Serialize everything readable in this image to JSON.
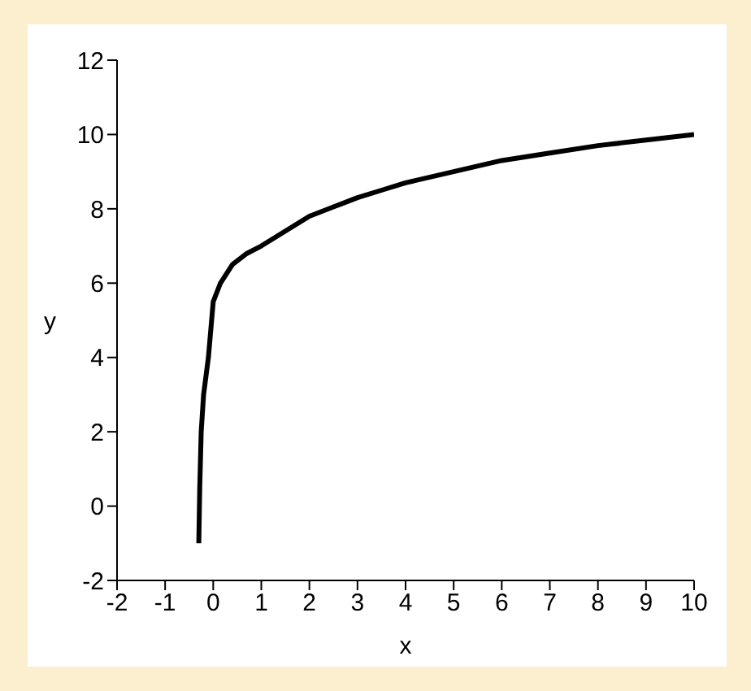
{
  "chart_data": {
    "type": "line",
    "xlabel": "x",
    "ylabel": "y",
    "x": [
      -0.3,
      -0.28,
      -0.25,
      -0.2,
      -0.1,
      0,
      0.15,
      0.4,
      0.7,
      1,
      1.5,
      2,
      2.5,
      3,
      3.5,
      4,
      5,
      6,
      7,
      8,
      9,
      10
    ],
    "series": [
      {
        "color": "#000000",
        "values": [
          -1,
          0.5,
          2,
          3,
          4,
          5.5,
          6,
          6.5,
          6.8,
          7,
          7.4,
          7.8,
          8.05,
          8.3,
          8.5,
          8.7,
          9,
          9.3,
          9.5,
          9.7,
          9.85,
          10
        ]
      }
    ],
    "xlim": [
      -2,
      10
    ],
    "xticks": [
      -2,
      -1,
      0,
      1,
      2,
      3,
      4,
      5,
      6,
      7,
      8,
      9,
      10
    ],
    "ylim": [
      -2,
      12
    ],
    "yticks": [
      -2,
      0,
      2,
      4,
      6,
      8,
      10,
      12
    ],
    "grid": false,
    "legend": false,
    "marker": "none",
    "line_style": "solid"
  }
}
